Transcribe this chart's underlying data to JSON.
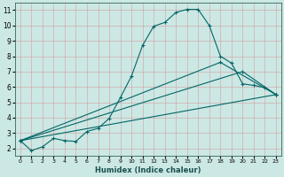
{
  "xlabel": "Humidex (Indice chaleur)",
  "bg_color": "#cce8e4",
  "line_color": "#006666",
  "xlim": [
    -0.5,
    23.5
  ],
  "ylim": [
    1.5,
    11.5
  ],
  "xticks": [
    0,
    1,
    2,
    3,
    4,
    5,
    6,
    7,
    8,
    9,
    10,
    11,
    12,
    13,
    14,
    15,
    16,
    17,
    18,
    19,
    20,
    21,
    22,
    23
  ],
  "yticks": [
    2,
    3,
    4,
    5,
    6,
    7,
    8,
    9,
    10,
    11
  ],
  "line1_x": [
    0,
    1,
    2,
    3,
    4,
    5,
    6,
    7,
    8,
    9,
    10,
    11,
    12,
    13,
    14,
    15,
    16,
    17,
    18,
    19,
    20,
    21,
    22,
    23
  ],
  "line1_y": [
    2.5,
    1.85,
    2.1,
    2.65,
    2.5,
    2.45,
    3.1,
    3.3,
    3.95,
    5.3,
    6.7,
    8.7,
    9.95,
    10.2,
    10.85,
    11.05,
    11.05,
    10.0,
    8.0,
    7.55,
    6.2,
    6.1,
    5.95,
    5.5
  ],
  "line2_x": [
    0,
    23
  ],
  "line2_y": [
    2.5,
    5.5
  ],
  "line3_x": [
    0,
    20,
    23
  ],
  "line3_y": [
    2.5,
    7.0,
    5.5
  ],
  "line4_x": [
    0,
    18,
    23
  ],
  "line4_y": [
    2.5,
    7.6,
    5.5
  ]
}
